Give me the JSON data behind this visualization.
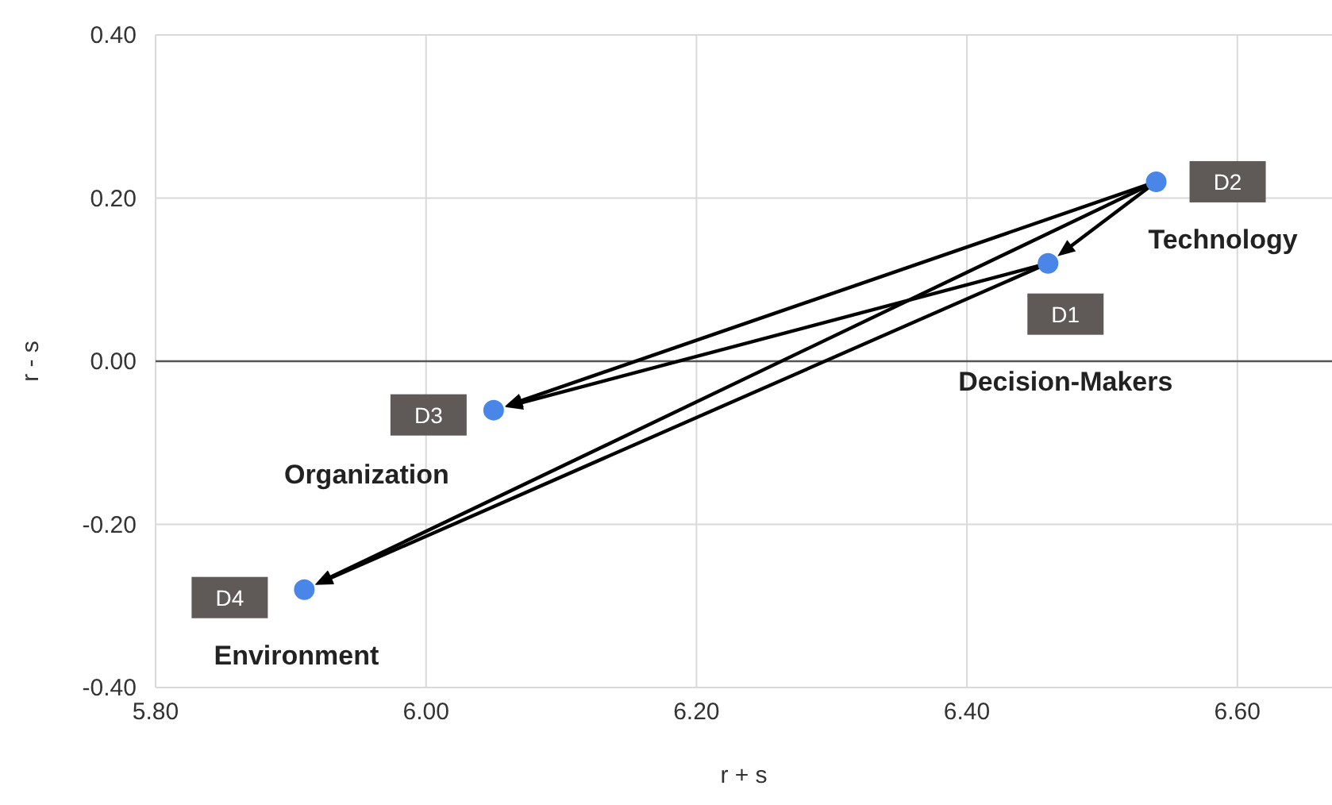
{
  "chart_data": {
    "type": "scatter",
    "xlabel": "r + s",
    "ylabel": "r - s",
    "xlim": [
      5.8,
      6.67
    ],
    "ylim": [
      -0.4,
      0.4
    ],
    "xticks": [
      {
        "value": 5.8,
        "label": "5.80"
      },
      {
        "value": 6.0,
        "label": "6.00"
      },
      {
        "value": 6.2,
        "label": "6.20"
      },
      {
        "value": 6.4,
        "label": "6.40"
      },
      {
        "value": 6.6,
        "label": "6.60"
      }
    ],
    "yticks": [
      {
        "value": -0.4,
        "label": "-0.40"
      },
      {
        "value": -0.2,
        "label": "-0.20"
      },
      {
        "value": 0,
        "label": "0.00"
      },
      {
        "value": 0.2,
        "label": "0.20"
      },
      {
        "value": 0.4,
        "label": "0.40"
      }
    ],
    "grid": true,
    "marker": "circle",
    "series": [
      {
        "color": "#4a86e8",
        "x": [
          6.46,
          6.54,
          6.05,
          5.91
        ],
        "values": [
          0.12,
          0.22,
          -0.06,
          -0.28
        ]
      }
    ],
    "annotations": [
      "D1",
      "Decision-Makers",
      "D2",
      "Technology",
      "D3",
      "Organization",
      "D4",
      "Environment"
    ]
  }
}
